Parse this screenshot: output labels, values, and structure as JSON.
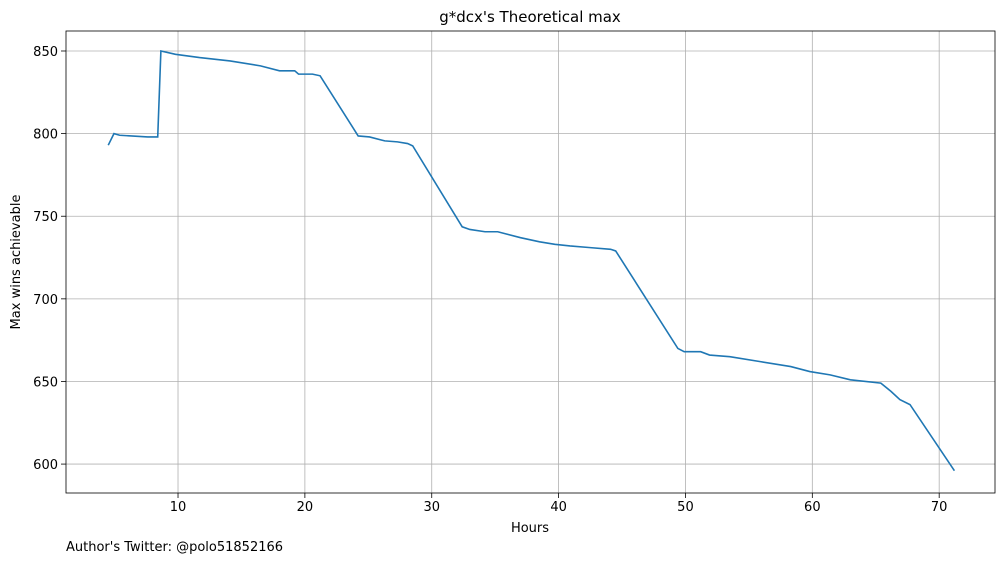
{
  "chart_data": {
    "type": "line",
    "title": "g*dcx's Theoretical max",
    "xlabel": "Hours",
    "ylabel": "Max wins achievable",
    "annotation": "Author's Twitter: @polo51852166",
    "x": [
      4.5,
      4.95,
      5.4,
      7.6,
      8.4,
      8.65,
      9.8,
      11.7,
      14.1,
      16.5,
      18.0,
      19.2,
      19.5,
      20.6,
      21.2,
      24.2,
      25.1,
      26.3,
      27.3,
      28.1,
      28.5,
      32.4,
      33.0,
      34.2,
      35.2,
      37.0,
      38.5,
      39.7,
      40.9,
      42.5,
      44.1,
      44.5,
      49.4,
      49.9,
      51.2,
      51.9,
      53.5,
      55.9,
      58.3,
      59.8,
      61.4,
      63.0,
      65.4,
      66.2,
      66.9,
      67.7,
      71.2
    ],
    "series": [
      {
        "name": "Max wins achievable",
        "color": "#1f77b4",
        "values": [
          793,
          800,
          799,
          798,
          798,
          850,
          848,
          846,
          844,
          841,
          838,
          838,
          836,
          836,
          835,
          798.6,
          798,
          795.6,
          795,
          794,
          792.6,
          743.6,
          742,
          740.6,
          740.6,
          737,
          734.5,
          733,
          732,
          731,
          730,
          729,
          670,
          668,
          668,
          666,
          665,
          662,
          659,
          656,
          654,
          651,
          649,
          644,
          639,
          636,
          596
        ]
      }
    ],
    "xlim": [
      1.17,
      74.4
    ],
    "xticks": [
      10,
      20,
      30,
      40,
      50,
      60,
      70
    ],
    "ylim": [
      582.5,
      862.1
    ],
    "yticks": [
      600,
      650,
      700,
      750,
      800,
      850
    ],
    "grid": true
  }
}
